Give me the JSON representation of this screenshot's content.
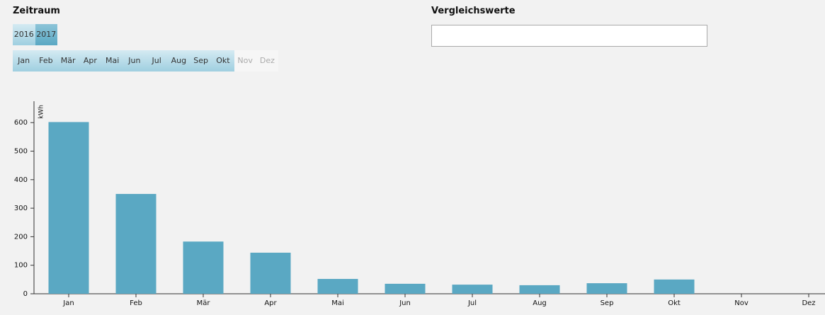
{
  "zeitraum": {
    "title": "Zeitraum",
    "years": [
      {
        "label": "2016",
        "selected": false
      },
      {
        "label": "2017",
        "selected": true
      }
    ],
    "months": [
      {
        "label": "Jan",
        "enabled": true
      },
      {
        "label": "Feb",
        "enabled": true
      },
      {
        "label": "Mär",
        "enabled": true
      },
      {
        "label": "Apr",
        "enabled": true
      },
      {
        "label": "Mai",
        "enabled": true
      },
      {
        "label": "Jun",
        "enabled": true
      },
      {
        "label": "Jul",
        "enabled": true
      },
      {
        "label": "Aug",
        "enabled": true
      },
      {
        "label": "Sep",
        "enabled": true
      },
      {
        "label": "Okt",
        "enabled": true
      },
      {
        "label": "Nov",
        "enabled": false
      },
      {
        "label": "Dez",
        "enabled": false
      }
    ]
  },
  "vergleich": {
    "title": "Vergleichswerte"
  },
  "chart_data": {
    "type": "bar",
    "y_label": "kWh",
    "categories": [
      "Jan",
      "Feb",
      "Mär",
      "Apr",
      "Mai",
      "Jun",
      "Jul",
      "Aug",
      "Sep",
      "Okt",
      "Nov",
      "Dez"
    ],
    "values": [
      602,
      350,
      183,
      144,
      52,
      35,
      32,
      30,
      37,
      50,
      null,
      null
    ],
    "color": "#5aa8c3",
    "ylim": [
      0,
      675
    ],
    "yticks": [
      0,
      100,
      200,
      300,
      400,
      500,
      600
    ],
    "grid": false
  }
}
